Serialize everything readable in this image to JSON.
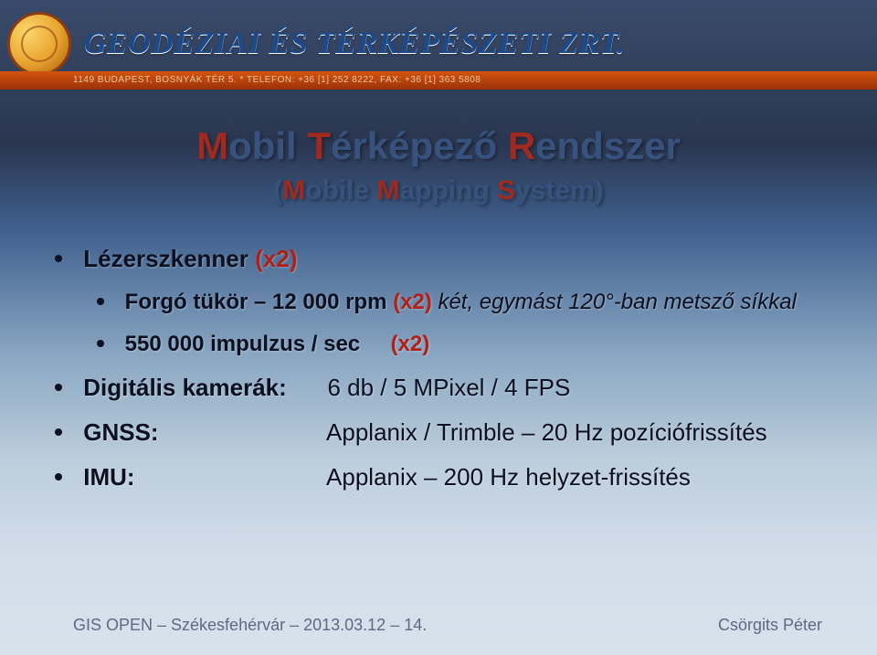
{
  "header": {
    "company": "GEODÉZIAI ÉS TÉRKÉPÉSZETI ZRT.",
    "contact": "1149 BUDAPEST, BOSNYÁK TÉR 5.  *  TELEFON: +36 [1] 252 8222, FAX: +36 [1] 363 5808"
  },
  "title": {
    "word1_initial": "M",
    "word1_rest": "obil ",
    "word2_initial": "T",
    "word2_rest": "érképező ",
    "word3_initial": "R",
    "word3_rest": "endszer",
    "sub_open": "(",
    "sub_w1_i": "M",
    "sub_w1_r": "obile ",
    "sub_w2_i": "M",
    "sub_w2_r": "apping ",
    "sub_w3_i": "S",
    "sub_w3_r": "ystem",
    "sub_close": ")"
  },
  "bullets": {
    "laser_label": "Lézerszkenner",
    "laser_x2": "(x2)",
    "mirror_pre": "Forgó tükör – 12 000 rpm ",
    "mirror_x2": "(x2)",
    "mirror_post": " két, egymást 120°-ban metsző síkkal",
    "impulse_label": "550 000 impulzus / sec",
    "impulse_x2": "(x2)",
    "cam_label": "Digitális kamerák:",
    "cam_value": "6 db / 5 MPixel / 4 FPS",
    "gnss_label": "GNSS:",
    "gnss_value": "Applanix / Trimble – 20 Hz pozíciófrissítés",
    "imu_label": "IMU:",
    "imu_value": "Applanix – 200 Hz helyzet-frissítés"
  },
  "footer": {
    "left": "GIS OPEN – Székesfehérvár – 2013.03.12 – 14.",
    "right": "Csörgits Péter"
  },
  "colors": {
    "accent_red": "#a02a1f",
    "title_blue": "#37537d"
  }
}
